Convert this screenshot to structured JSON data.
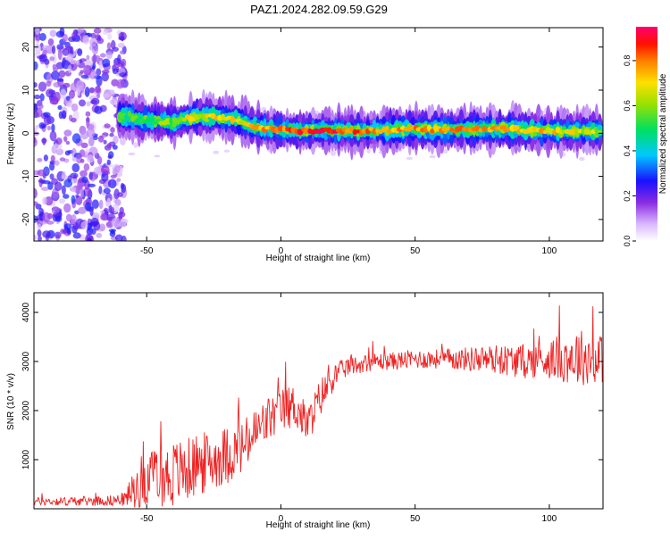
{
  "title": "PAZ1.2024.282.09.59.G29",
  "chart_data": [
    {
      "type": "heatmap",
      "xlabel": "Height of straight line (km)",
      "ylabel": "Frequency (Hz)",
      "xlim": [
        -92,
        120
      ],
      "ylim": [
        -25,
        24.5
      ],
      "xticks": [
        -50,
        0,
        50,
        100
      ],
      "yticks": [
        -20,
        -10,
        0,
        10,
        20
      ],
      "colorbar": {
        "label": "Normalized spectral amplitude",
        "range": [
          0.0,
          0.95
        ],
        "ticks": [
          "0.0",
          "0.2",
          "0.4",
          "0.6",
          "0.8"
        ]
      },
      "ridge": {
        "x": [
          -60,
          -55,
          -50,
          -45,
          -40,
          -35,
          -30,
          -25,
          -20,
          -15,
          -10,
          -5,
          0,
          10,
          20,
          30,
          40,
          50,
          60,
          70,
          80,
          90,
          100,
          110,
          120
        ],
        "frequency": [
          4.0,
          3.5,
          3.0,
          2.8,
          2.5,
          3.5,
          3.8,
          4.0,
          3.5,
          3.0,
          1.5,
          1.0,
          0.8,
          0.6,
          0.7,
          0.5,
          0.8,
          1.0,
          0.8,
          0.9,
          1.0,
          0.8,
          0.6,
          0.5,
          0.6
        ],
        "peak_amplitude": [
          0.5,
          0.55,
          0.55,
          0.6,
          0.6,
          0.7,
          0.7,
          0.72,
          0.75,
          0.7,
          0.75,
          0.8,
          0.85,
          0.9,
          0.9,
          0.85,
          0.8,
          0.8,
          0.82,
          0.8,
          0.8,
          0.78,
          0.75,
          0.7,
          0.65
        ]
      },
      "noise_region": {
        "x_range": [
          -92,
          -58
        ],
        "freq_range": [
          -25,
          24.5
        ],
        "amplitude_range": [
          0.05,
          0.3
        ]
      }
    },
    {
      "type": "line",
      "xlabel": "Height of straight line (km)",
      "ylabel": "SNR (10 * v/v)",
      "xlim": [
        -92,
        120
      ],
      "ylim": [
        0,
        4400
      ],
      "xticks": [
        -50,
        0,
        50,
        100
      ],
      "yticks": [
        1000,
        2000,
        3000,
        4000
      ],
      "color": "#ee2222",
      "series": [
        {
          "x": [
            -92,
            -80,
            -70,
            -62,
            -58,
            -55,
            -52,
            -50,
            -45,
            -40,
            -35,
            -30,
            -25,
            -20,
            -15,
            -10,
            -5,
            0,
            5,
            10,
            15,
            20,
            25,
            30,
            35,
            40,
            50,
            60,
            70,
            80,
            90,
            100,
            110,
            120
          ],
          "value": [
            150,
            150,
            160,
            170,
            200,
            350,
            550,
            600,
            650,
            700,
            800,
            900,
            1000,
            1100,
            1200,
            1500,
            1800,
            2000,
            2100,
            1700,
            2300,
            2700,
            2900,
            2950,
            3000,
            3000,
            3050,
            3050,
            3050,
            3050,
            3000,
            3050,
            3100,
            3050
          ],
          "spread": [
            80,
            90,
            100,
            110,
            150,
            400,
            550,
            500,
            600,
            700,
            650,
            650,
            600,
            600,
            550,
            550,
            500,
            450,
            450,
            400,
            400,
            250,
            200,
            180,
            180,
            180,
            200,
            200,
            250,
            300,
            350,
            400,
            600,
            500
          ]
        }
      ]
    }
  ]
}
